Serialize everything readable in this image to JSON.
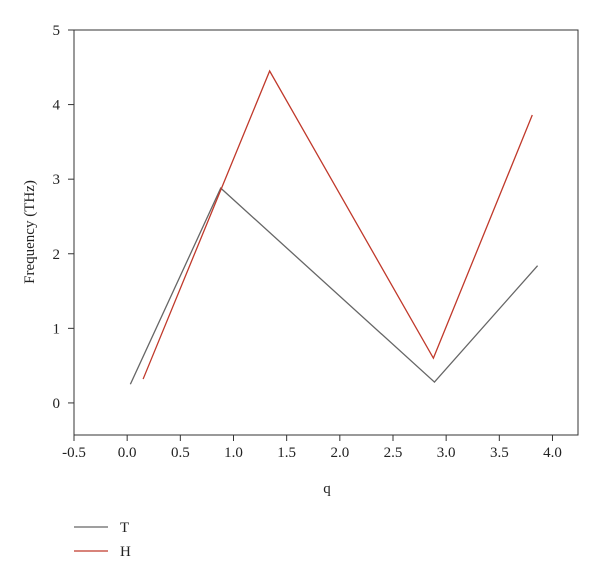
{
  "chart_data": {
    "type": "line",
    "xlabel": "q",
    "ylabel": "Frequency (THz)",
    "xlim": [
      -0.5,
      4.24
    ],
    "ylim": [
      -0.43,
      5
    ],
    "xticks": [
      -0.5,
      {
        "value": 0,
        "label": "0.0"
      },
      0.5,
      {
        "value": 1,
        "label": "1.0"
      },
      1.5,
      {
        "value": 2,
        "label": "2.0"
      },
      2.5,
      {
        "value": 3,
        "label": "3.0"
      },
      3.5,
      {
        "value": 4,
        "label": "4.0"
      }
    ],
    "yticks": [
      0,
      1,
      2,
      3,
      4,
      5
    ],
    "legend": "bottom-left",
    "series": [
      {
        "name": "T",
        "color": "#666666",
        "x": [
          0.03,
          0.88,
          2.89,
          3.86
        ],
        "values": [
          0.25,
          2.88,
          0.28,
          1.84
        ]
      },
      {
        "name": "H",
        "color": "#c0392b",
        "x": [
          0.15,
          1.34,
          2.88,
          3.81
        ],
        "values": [
          0.32,
          4.45,
          0.6,
          3.86
        ]
      }
    ]
  }
}
